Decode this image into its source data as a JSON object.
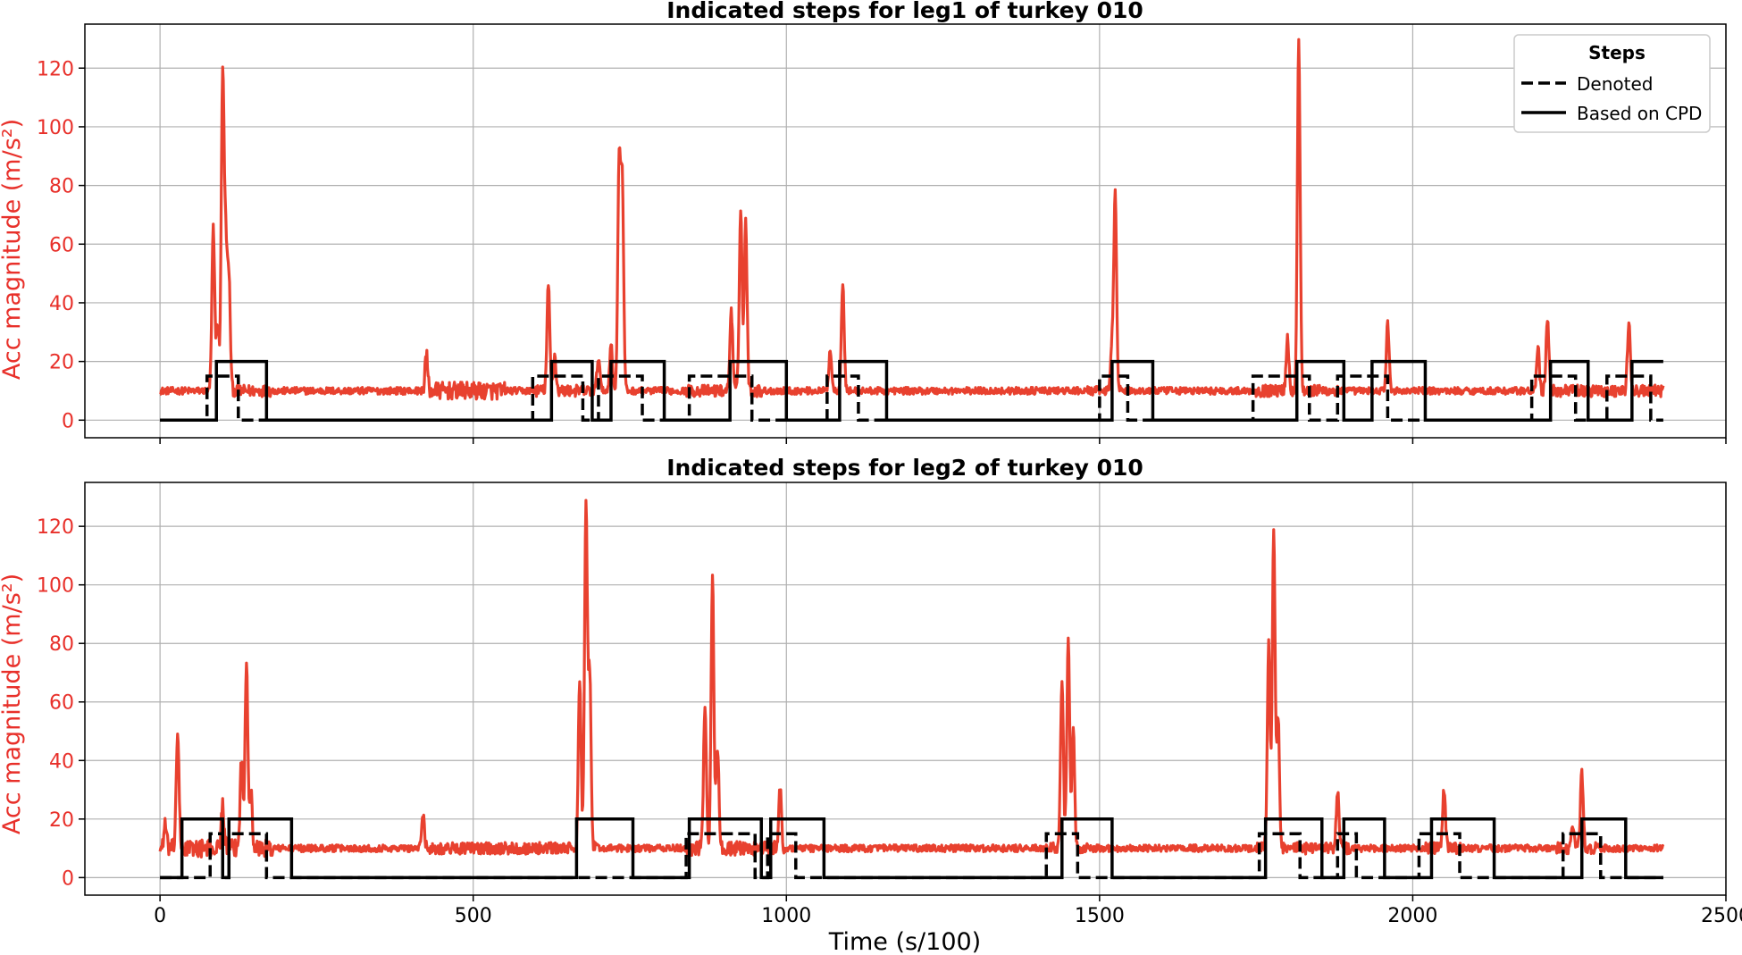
{
  "chart_data": [
    {
      "type": "line",
      "title": "Indicated steps for leg1 of turkey 010",
      "xlabel": "",
      "ylabel": "Acc magnitude (m/s²)",
      "xlim": [
        -120,
        2500
      ],
      "ylim": [
        -6,
        135
      ],
      "x_ticks": [
        0,
        500,
        1000,
        1500,
        2000,
        2500
      ],
      "x_tick_labels": [
        "",
        "",
        "",
        "",
        "",
        ""
      ],
      "y_ticks": [
        0,
        20,
        40,
        60,
        80,
        100,
        120
      ],
      "y_tick_labels": [
        "0",
        "20",
        "40",
        "60",
        "80",
        "100",
        "120"
      ],
      "grid": true,
      "legend": {
        "title": "Steps",
        "placement": "top-right",
        "entries": [
          {
            "label": "Denoted",
            "style": "dashed"
          },
          {
            "label": "Based on CPD",
            "style": "solid"
          }
        ]
      },
      "signal": {
        "color": "#e8412f",
        "x_range": [
          0,
          2400
        ],
        "baseline": 10,
        "noise": 1.2,
        "noisy_regions": [
          [
            420,
            550,
            3.0
          ],
          [
            80,
            180,
            2.0
          ],
          [
            600,
            700,
            2.0
          ],
          [
            840,
            960,
            2.0
          ],
          [
            1480,
            1540,
            1.5
          ],
          [
            1750,
            1880,
            2.0
          ],
          [
            2200,
            2400,
            2.0
          ]
        ],
        "peaks": [
          {
            "x": 85,
            "y": 65
          },
          {
            "x": 92,
            "y": 33
          },
          {
            "x": 100,
            "y": 118
          },
          {
            "x": 105,
            "y": 58
          },
          {
            "x": 110,
            "y": 48
          },
          {
            "x": 425,
            "y": 22
          },
          {
            "x": 620,
            "y": 46
          },
          {
            "x": 630,
            "y": 22
          },
          {
            "x": 700,
            "y": 22
          },
          {
            "x": 720,
            "y": 26
          },
          {
            "x": 733,
            "y": 88
          },
          {
            "x": 738,
            "y": 80
          },
          {
            "x": 912,
            "y": 38
          },
          {
            "x": 927,
            "y": 73
          },
          {
            "x": 935,
            "y": 68
          },
          {
            "x": 1070,
            "y": 24
          },
          {
            "x": 1090,
            "y": 47
          },
          {
            "x": 1520,
            "y": 25
          },
          {
            "x": 1525,
            "y": 77
          },
          {
            "x": 1800,
            "y": 28
          },
          {
            "x": 1818,
            "y": 131
          },
          {
            "x": 1960,
            "y": 33
          },
          {
            "x": 2200,
            "y": 24
          },
          {
            "x": 2215,
            "y": 35
          },
          {
            "x": 2345,
            "y": 33
          }
        ]
      },
      "steps_denoted": {
        "low": 0,
        "high": 15,
        "intervals": [
          [
            75,
            125
          ],
          [
            595,
            675
          ],
          [
            700,
            770
          ],
          [
            845,
            945
          ],
          [
            1065,
            1115
          ],
          [
            1500,
            1545
          ],
          [
            1745,
            1835
          ],
          [
            1880,
            1960
          ],
          [
            2190,
            2260
          ],
          [
            2310,
            2380
          ]
        ],
        "x_end": 2400
      },
      "steps_cpd": {
        "low": 0,
        "high": 20,
        "intervals": [
          [
            90,
            170
          ],
          [
            625,
            690
          ],
          [
            720,
            805
          ],
          [
            910,
            1000
          ],
          [
            1085,
            1160
          ],
          [
            1520,
            1585
          ],
          [
            1815,
            1890
          ],
          [
            1935,
            2020
          ],
          [
            2220,
            2280
          ],
          [
            2350,
            2400
          ]
        ],
        "x_end": 2400
      }
    },
    {
      "type": "line",
      "title": "Indicated steps for leg2 of turkey 010",
      "xlabel": "Time (s/100)",
      "ylabel": "Acc magnitude (m/s²)",
      "xlim": [
        -120,
        2500
      ],
      "ylim": [
        -6,
        135
      ],
      "x_ticks": [
        0,
        500,
        1000,
        1500,
        2000,
        2500
      ],
      "x_tick_labels": [
        "0",
        "500",
        "1000",
        "1500",
        "2000",
        "2500"
      ],
      "y_ticks": [
        0,
        20,
        40,
        60,
        80,
        100,
        120
      ],
      "y_tick_labels": [
        "0",
        "20",
        "40",
        "60",
        "80",
        "100",
        "120"
      ],
      "grid": true,
      "signal": {
        "color": "#e8412f",
        "x_range": [
          0,
          2400
        ],
        "baseline": 10,
        "noise": 1.2,
        "noisy_regions": [
          [
            0,
            180,
            3.0
          ],
          [
            420,
            700,
            2.0
          ],
          [
            840,
            1000,
            2.5
          ],
          [
            1420,
            1480,
            2.0
          ],
          [
            1750,
            1900,
            2.0
          ],
          [
            2020,
            2080,
            2.0
          ],
          [
            2230,
            2300,
            2.0
          ]
        ],
        "peaks": [
          {
            "x": 8,
            "y": 18
          },
          {
            "x": 28,
            "y": 50
          },
          {
            "x": 100,
            "y": 25
          },
          {
            "x": 130,
            "y": 40
          },
          {
            "x": 138,
            "y": 75
          },
          {
            "x": 145,
            "y": 29
          },
          {
            "x": 420,
            "y": 22
          },
          {
            "x": 670,
            "y": 67
          },
          {
            "x": 680,
            "y": 128
          },
          {
            "x": 686,
            "y": 70
          },
          {
            "x": 870,
            "y": 60
          },
          {
            "x": 882,
            "y": 103
          },
          {
            "x": 890,
            "y": 45
          },
          {
            "x": 990,
            "y": 30
          },
          {
            "x": 1440,
            "y": 68
          },
          {
            "x": 1450,
            "y": 80
          },
          {
            "x": 1458,
            "y": 50
          },
          {
            "x": 1770,
            "y": 80
          },
          {
            "x": 1778,
            "y": 119
          },
          {
            "x": 1785,
            "y": 55
          },
          {
            "x": 1880,
            "y": 30
          },
          {
            "x": 2050,
            "y": 30
          },
          {
            "x": 2255,
            "y": 17
          },
          {
            "x": 2270,
            "y": 36
          }
        ]
      },
      "steps_denoted": {
        "low": 0,
        "high": 15,
        "intervals": [
          [
            80,
            100
          ],
          [
            110,
            170
          ],
          [
            840,
            950
          ],
          [
            970,
            1015
          ],
          [
            1415,
            1465
          ],
          [
            1755,
            1820
          ],
          [
            1880,
            1910
          ],
          [
            2010,
            2075
          ],
          [
            2240,
            2300
          ]
        ],
        "x_end": 2400
      },
      "steps_cpd": {
        "low": 0,
        "high": 20,
        "intervals": [
          [
            35,
            100
          ],
          [
            110,
            210
          ],
          [
            665,
            755
          ],
          [
            845,
            960
          ],
          [
            975,
            1060
          ],
          [
            1440,
            1520
          ],
          [
            1765,
            1855
          ],
          [
            1890,
            1955
          ],
          [
            2030,
            2130
          ],
          [
            2270,
            2340
          ]
        ],
        "x_end": 2400
      }
    }
  ]
}
